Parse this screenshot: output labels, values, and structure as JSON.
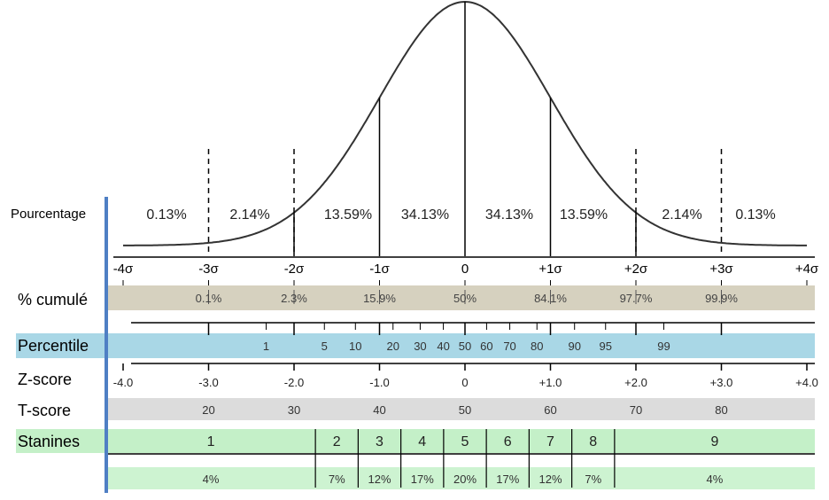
{
  "left_title": "Pourcentage",
  "area_percentages": [
    "0.13%",
    "2.14%",
    "13.59%",
    "34.13%",
    "34.13%",
    "13.59%",
    "2.14%",
    "0.13%"
  ],
  "sigma_labels": [
    "-4σ",
    "-3σ",
    "-2σ",
    "-1σ",
    "0",
    "+1σ",
    "+2σ",
    "+3σ",
    "+4σ"
  ],
  "rows": {
    "cumulative": {
      "label": "% cumulé",
      "values": [
        "0.1%",
        "2.3%",
        "15.9%",
        "50%",
        "84.1%",
        "97.7%",
        "99.9%"
      ],
      "z": [
        -3,
        -2,
        -1,
        0,
        1,
        2,
        3
      ]
    },
    "percentile": {
      "label": "Percentile",
      "values": [
        "1",
        "5",
        "10",
        "20",
        "30",
        "40",
        "50",
        "60",
        "70",
        "80",
        "90",
        "95",
        "99"
      ],
      "z": [
        -2.326,
        -1.645,
        -1.282,
        -0.842,
        -0.524,
        -0.253,
        0,
        0.253,
        0.524,
        0.842,
        1.282,
        1.645,
        2.326
      ]
    },
    "zscore": {
      "label": "Z-score",
      "values": [
        "-4.0",
        "-3.0",
        "-2.0",
        "-1.0",
        "0",
        "+1.0",
        "+2.0",
        "+3.0",
        "+4.0"
      ],
      "z": [
        -4,
        -3,
        -2,
        -1,
        0,
        1,
        2,
        3,
        4
      ]
    },
    "tscore": {
      "label": "T-score",
      "values": [
        "20",
        "30",
        "40",
        "50",
        "60",
        "70",
        "80"
      ],
      "z": [
        -3,
        -2,
        -1,
        0,
        1,
        2,
        3
      ]
    },
    "stanines": {
      "label": "Stanines",
      "values": [
        "1",
        "2",
        "3",
        "4",
        "5",
        "6",
        "7",
        "8",
        "9"
      ],
      "percentages": [
        "4%",
        "7%",
        "12%",
        "17%",
        "20%",
        "17%",
        "12%",
        "7%",
        "4%"
      ],
      "bounds_z": [
        -4.3,
        -1.75,
        -1.25,
        -0.75,
        -0.25,
        0.25,
        0.75,
        1.25,
        1.75,
        4.3
      ]
    }
  },
  "colors": {
    "curve": "#333333",
    "axis_bar": "#4f7fc4",
    "cumulative_band": "#d6d1bf",
    "percentile_band": "#a9d7e6",
    "tscore_band": "#dcdcdc",
    "stanine_band": "#c4f0c8",
    "stanine_pct_band": "#cdf3d1"
  }
}
